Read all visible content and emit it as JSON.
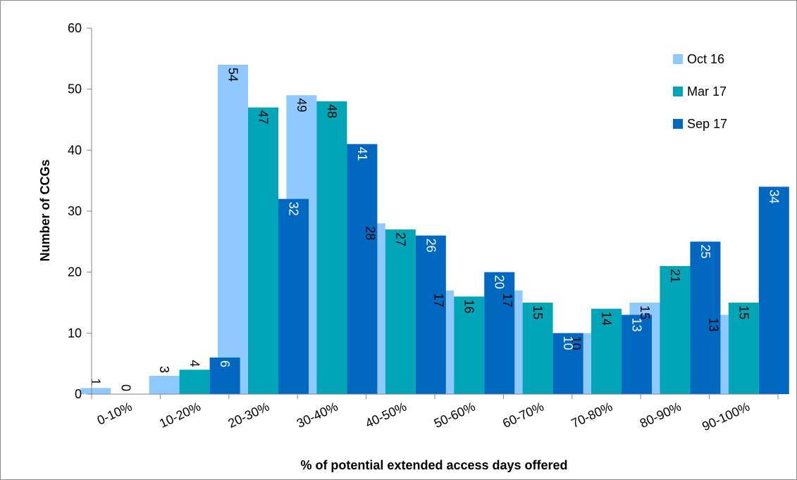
{
  "chart_data": {
    "type": "bar",
    "title": "",
    "xlabel": "% of potential extended access days offered",
    "ylabel": "Number of CCGs",
    "categories": [
      "0-10%",
      "10-20%",
      "20-30%",
      "30-40%",
      "40-50%",
      "50-60%",
      "60-70%",
      "70-80%",
      "80-90%",
      "90-100%"
    ],
    "series": [
      {
        "name": "Oct 16",
        "color": "#8ec9ff",
        "label_color": "#000000",
        "values": [
          1,
          3,
          54,
          49,
          28,
          17,
          17,
          10,
          15,
          13
        ]
      },
      {
        "name": "Mar 17",
        "color": "#00a5b8",
        "label_color": "#000000",
        "values": [
          0,
          4,
          47,
          48,
          27,
          16,
          15,
          14,
          21,
          15
        ]
      },
      {
        "name": "Sep 17",
        "color": "#0068c0",
        "label_color": "#ffffff",
        "values": [
          null,
          6,
          32,
          41,
          26,
          20,
          10,
          13,
          25,
          34
        ]
      }
    ],
    "ylim": [
      0,
      60
    ],
    "yticks": [
      0,
      10,
      20,
      30,
      40,
      50,
      60
    ],
    "grid": false,
    "legend_position": "top-right",
    "x_tick_rotation": "diagonal"
  }
}
